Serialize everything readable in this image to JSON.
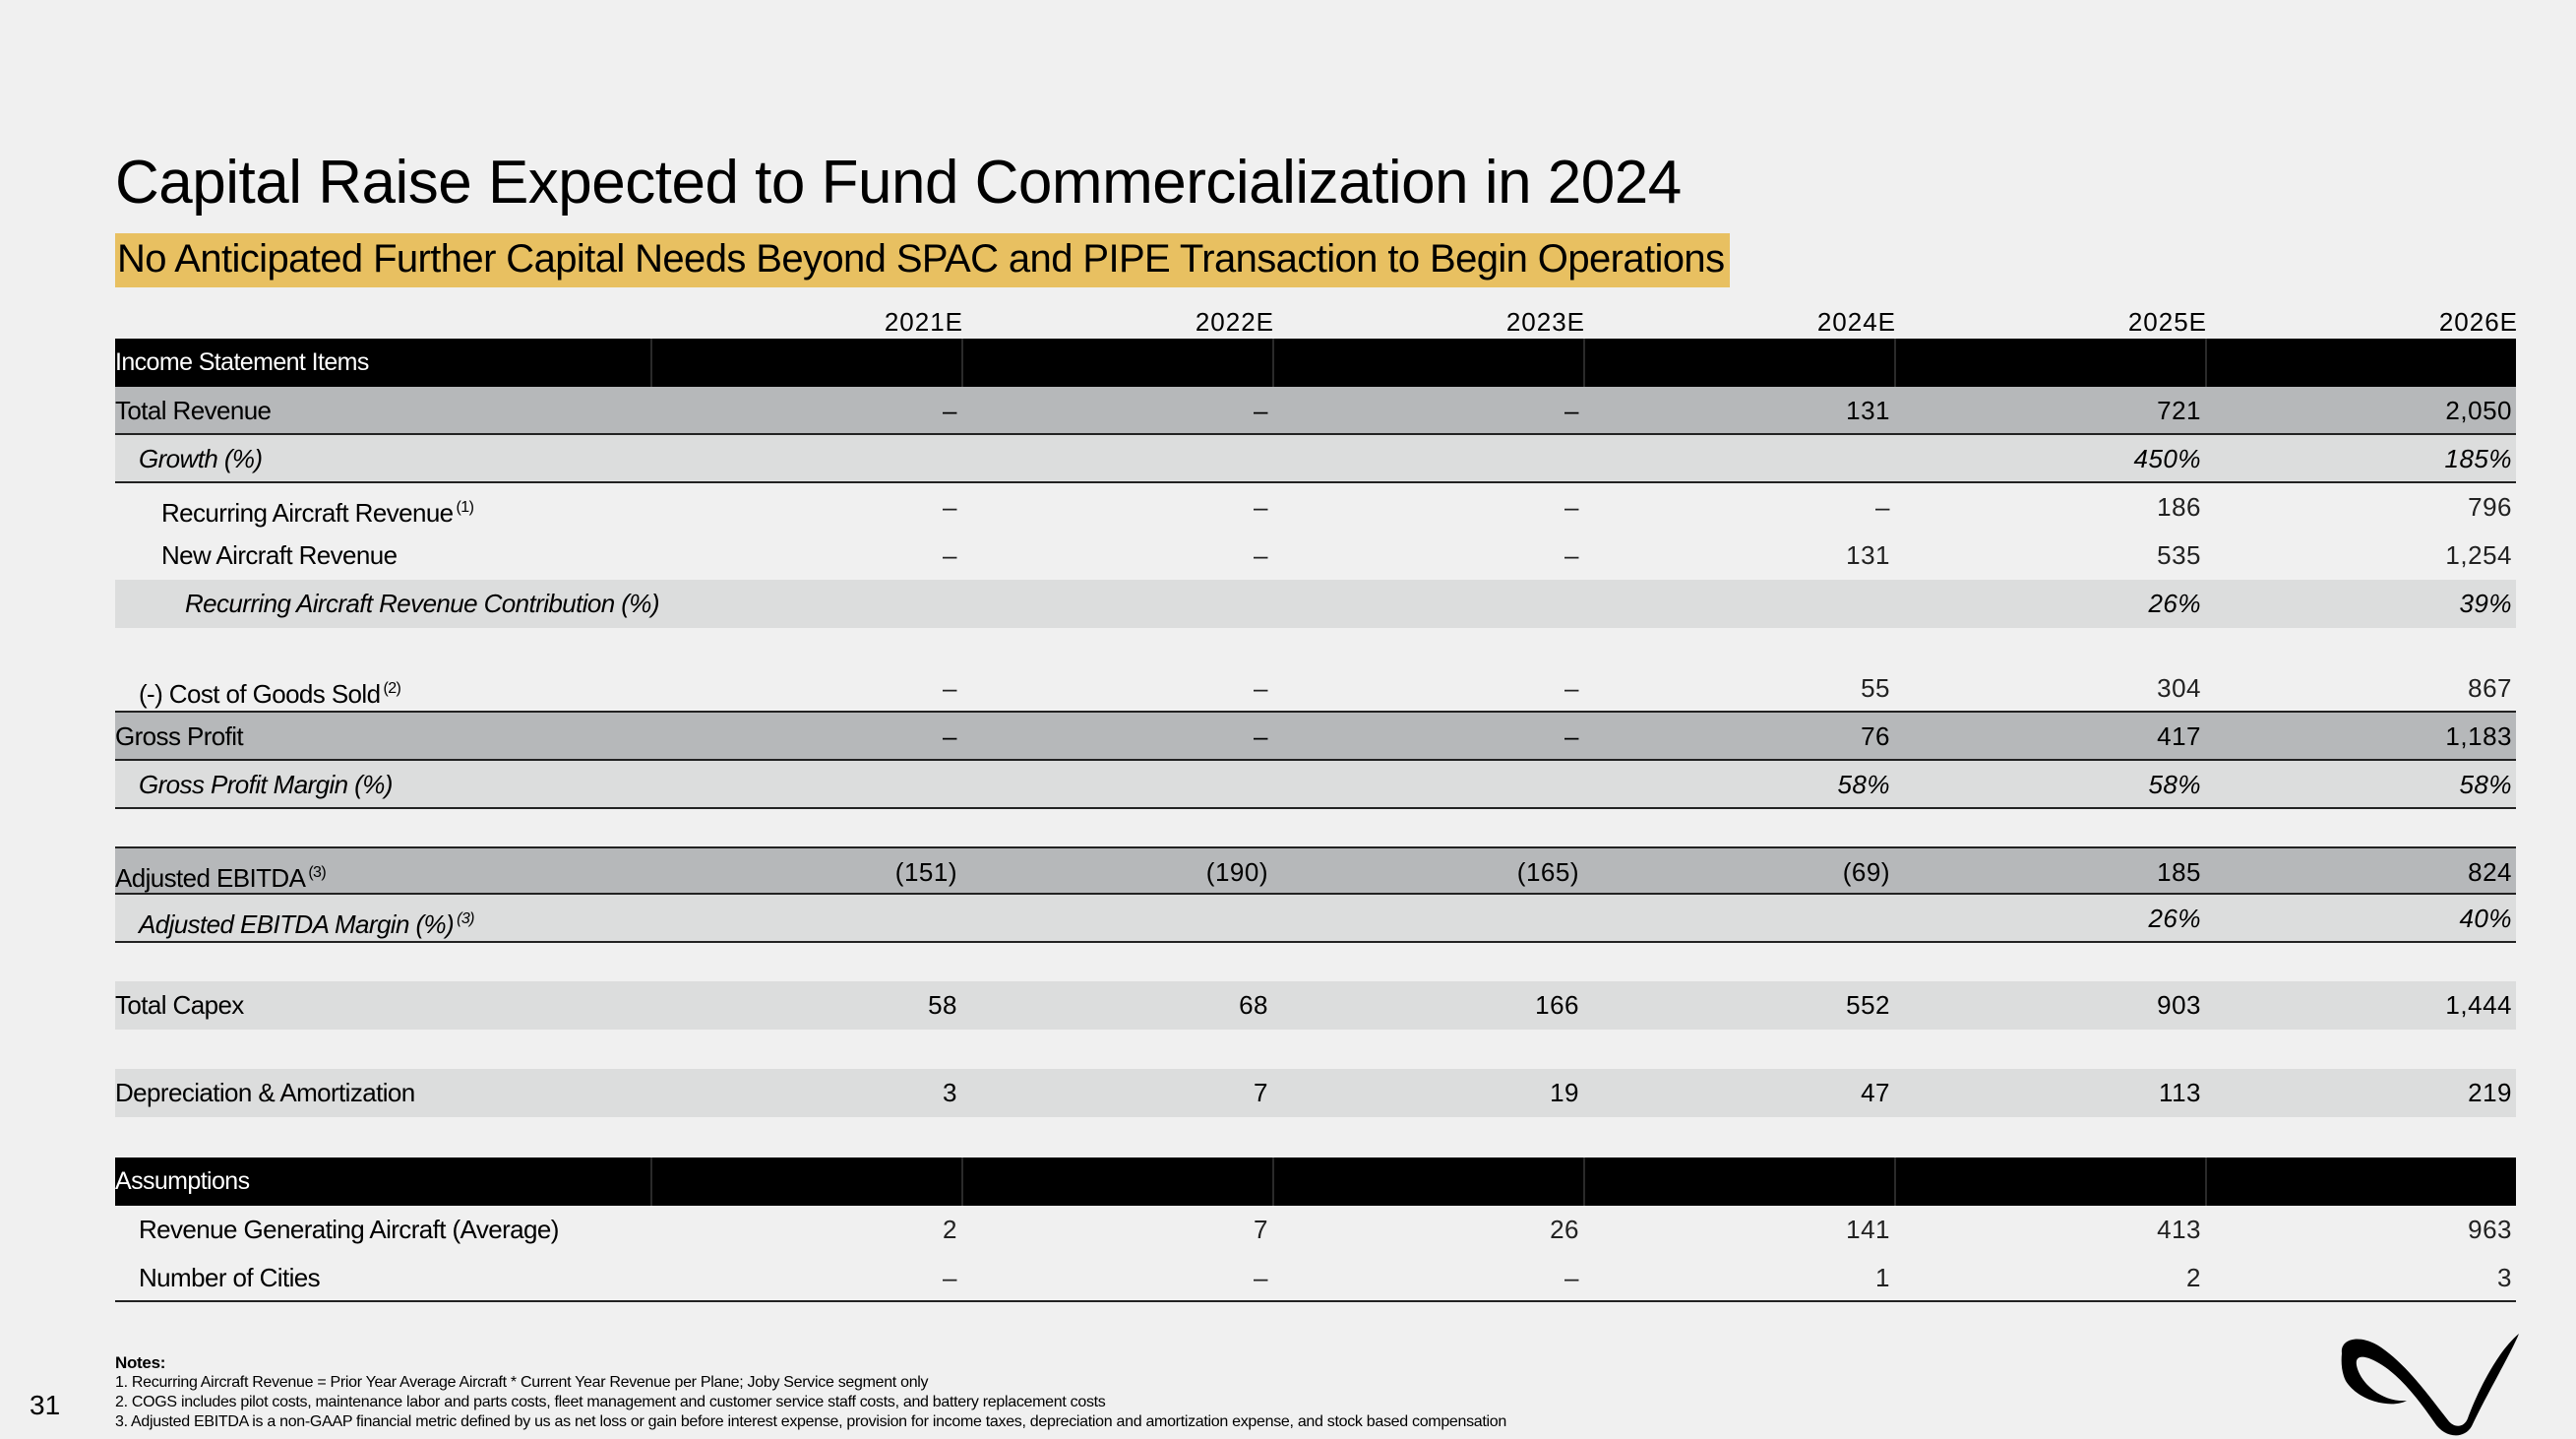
{
  "slide": {
    "title": "Capital Raise Expected to Fund Commercialization in 2024",
    "subtitle": "No Anticipated Further Capital Needs Beyond SPAC and PIPE Transaction to Begin Operations",
    "page_number": "31",
    "highlight_color": "#e8c061"
  },
  "table": {
    "years": [
      "2021E",
      "2022E",
      "2023E",
      "2024E",
      "2025E",
      "2026E"
    ],
    "section_income": "Income Statement Items",
    "section_assumptions": "Assumptions",
    "rows": {
      "total_revenue": {
        "label": "Total Revenue",
        "values": [
          "–",
          "–",
          "–",
          "131",
          "721",
          "2,050"
        ]
      },
      "growth": {
        "label": "Growth (%)",
        "values": [
          "",
          "",
          "",
          "",
          "450%",
          "185%"
        ]
      },
      "recurring": {
        "label": "Recurring Aircraft Revenue",
        "note": "(1)",
        "values": [
          "–",
          "–",
          "–",
          "–",
          "186",
          "796"
        ]
      },
      "new_aircraft": {
        "label": "New Aircraft Revenue",
        "values": [
          "–",
          "–",
          "–",
          "131",
          "535",
          "1,254"
        ]
      },
      "recurring_contrib": {
        "label": "Recurring Aircraft Revenue Contribution (%)",
        "values": [
          "",
          "",
          "",
          "",
          "26%",
          "39%"
        ]
      },
      "cogs": {
        "label": "(-) Cost of Goods Sold",
        "note": "(2)",
        "values": [
          "–",
          "–",
          "–",
          "55",
          "304",
          "867"
        ]
      },
      "gross_profit": {
        "label": "Gross Profit",
        "values": [
          "–",
          "–",
          "–",
          "76",
          "417",
          "1,183"
        ]
      },
      "gross_margin": {
        "label": "Gross Profit Margin (%)",
        "values": [
          "",
          "",
          "",
          "58%",
          "58%",
          "58%"
        ]
      },
      "adj_ebitda": {
        "label": "Adjusted EBITDA",
        "note": "(3)",
        "values": [
          "(151)",
          "(190)",
          "(165)",
          "(69)",
          "185",
          "824"
        ]
      },
      "adj_ebitda_margin": {
        "label": "Adjusted EBITDA Margin (%)",
        "note": "(3)",
        "values": [
          "",
          "",
          "",
          "",
          "26%",
          "40%"
        ]
      },
      "capex": {
        "label": "Total Capex",
        "values": [
          "58",
          "68",
          "166",
          "552",
          "903",
          "1,444"
        ]
      },
      "da": {
        "label": "Depreciation & Amortization",
        "values": [
          "3",
          "7",
          "19",
          "47",
          "113",
          "219"
        ]
      },
      "aircraft": {
        "label": "Revenue Generating Aircraft (Average)",
        "values": [
          "2",
          "7",
          "26",
          "141",
          "413",
          "963"
        ]
      },
      "cities": {
        "label": "Number of Cities",
        "values": [
          "–",
          "–",
          "–",
          "1",
          "2",
          "3"
        ]
      }
    }
  },
  "notes": {
    "title": "Notes:",
    "items": [
      "1.  Recurring Aircraft Revenue = Prior Year Average Aircraft * Current Year Revenue per Plane; Joby Service segment only",
      "2.  COGS includes pilot costs, maintenance labor and parts costs, fleet management and customer service staff costs, and battery replacement costs",
      "3.  Adjusted EBITDA is a non-GAAP financial metric defined by us as net loss or gain before interest expense, provision for income taxes, depreciation and amortization expense, and stock based compensation"
    ]
  },
  "logo_icon": "joby-logo-icon"
}
